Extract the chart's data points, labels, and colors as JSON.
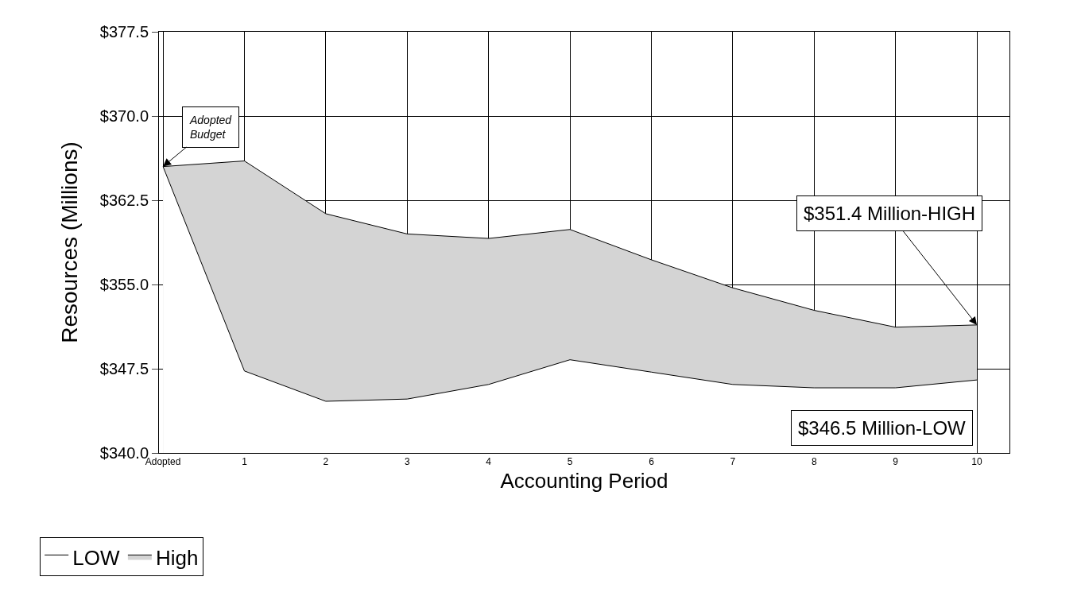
{
  "chart_data": {
    "type": "area",
    "xlabel": "Accounting Period",
    "ylabel": "Resources (Millions)",
    "categories": [
      "Adopted",
      "1",
      "2",
      "3",
      "4",
      "5",
      "6",
      "7",
      "8",
      "9",
      "10"
    ],
    "series": [
      {
        "name": "LOW",
        "color": "#ffffff",
        "values": [
          365.5,
          347.3,
          344.6,
          344.8,
          346.1,
          348.3,
          347.2,
          346.1,
          345.8,
          345.8,
          346.5
        ]
      },
      {
        "name": "High",
        "color": "#d4d4d4",
        "values": [
          365.5,
          366.0,
          361.3,
          359.5,
          359.1,
          359.9,
          357.2,
          354.7,
          352.7,
          351.2,
          351.4
        ]
      }
    ],
    "ylim": [
      340,
      377.5
    ],
    "yticks": [
      {
        "value": 340,
        "label": "$340.0"
      },
      {
        "value": 347.5,
        "label": "$347.5"
      },
      {
        "value": 355,
        "label": "$355.0"
      },
      {
        "value": 362.5,
        "label": "$362.5"
      },
      {
        "value": 370,
        "label": "$370.0"
      },
      {
        "value": 377.5,
        "label": "$377.5"
      }
    ],
    "grid": true,
    "legend": "bottom left",
    "marker": "none",
    "annotations": [
      {
        "text": "Adopted\nBudget",
        "x": "Adopted",
        "y": 365.5
      },
      {
        "text": "$351.4 Million-HIGH",
        "x": "10",
        "y": 351.4
      },
      {
        "text": "$346.5 Million-LOW",
        "x": "10",
        "y": 346.5
      }
    ]
  }
}
